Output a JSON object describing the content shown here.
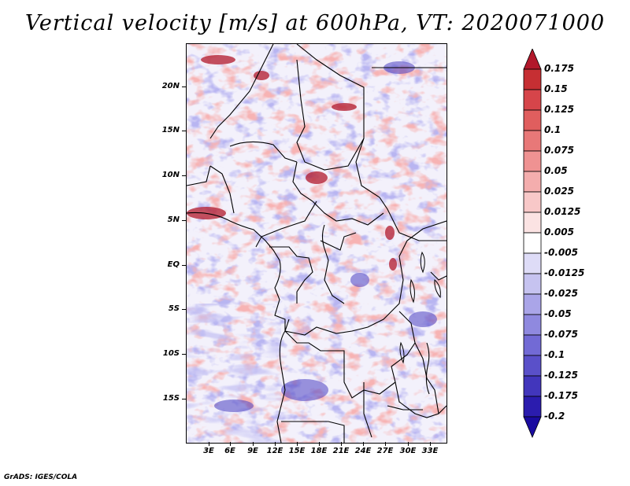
{
  "title": "Vertical velocity [m/s] at 600hPa, VT: 2020071000",
  "footer": "GrADS: IGES/COLA",
  "map": {
    "variable": "Vertical velocity",
    "units": "m/s",
    "level": "600hPa",
    "valid_time": "2020071000",
    "lat_labels": [
      "20N",
      "15N",
      "10N",
      "5N",
      "EQ",
      "5S",
      "10S",
      "15S"
    ],
    "lon_labels": [
      "3E",
      "6E",
      "9E",
      "12E",
      "15E",
      "18E",
      "21E",
      "24E",
      "27E",
      "30E",
      "33E"
    ]
  },
  "colorbar": {
    "levels": [
      "0.175",
      "0.15",
      "0.125",
      "0.1",
      "0.075",
      "0.05",
      "0.025",
      "0.0125",
      "0.005",
      "-0.005",
      "-0.0125",
      "-0.025",
      "-0.05",
      "-0.075",
      "-0.1",
      "-0.125",
      "-0.175",
      "-0.2"
    ],
    "colors": [
      "#b2182b",
      "#c62f33",
      "#d6454a",
      "#e05e5e",
      "#e87878",
      "#ef9292",
      "#f4adad",
      "#f8c8c8",
      "#fbe3e3",
      "#ffffff",
      "#dedcf7",
      "#c6c3f0",
      "#aaa5e8",
      "#8f89df",
      "#726ad5",
      "#5a50c9",
      "#4236bc",
      "#2b1cae",
      "#1a0ba0"
    ]
  }
}
